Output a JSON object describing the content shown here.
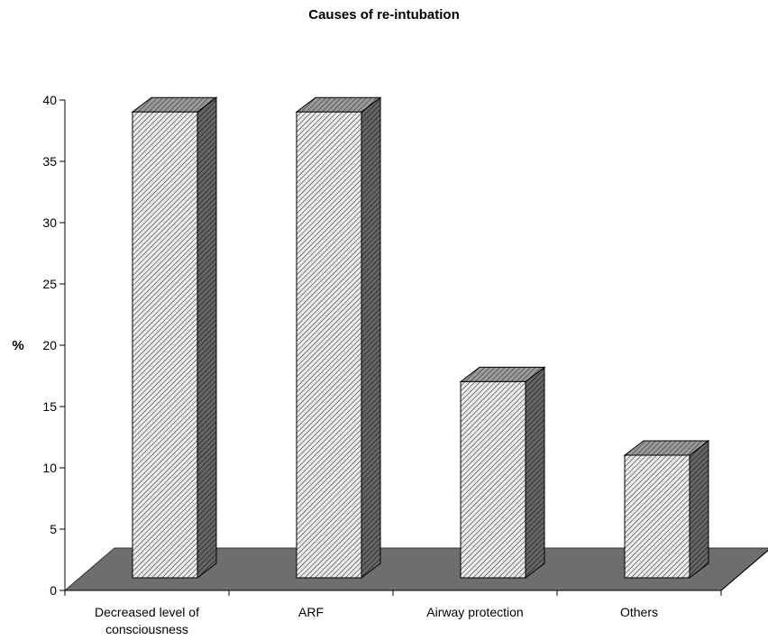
{
  "chart_data": {
    "type": "bar",
    "title": "Causes of re-intubation",
    "xlabel": "",
    "ylabel": "%",
    "categories": [
      [
        "Decreased level of",
        "consciousness"
      ],
      [
        "ARF"
      ],
      [
        "Airway protection"
      ],
      [
        "Others"
      ]
    ],
    "values": [
      38,
      38,
      16,
      10
    ],
    "ylim": [
      0,
      40
    ],
    "yticks": [
      0,
      5,
      10,
      15,
      20,
      25,
      30,
      35,
      40
    ],
    "grid": false,
    "legend": "none",
    "style": "3d-hatched",
    "colors": {
      "floor": "#6e6e6e",
      "bar_side": "#4a4a4a",
      "bar_face": "#e6e6e6"
    }
  }
}
